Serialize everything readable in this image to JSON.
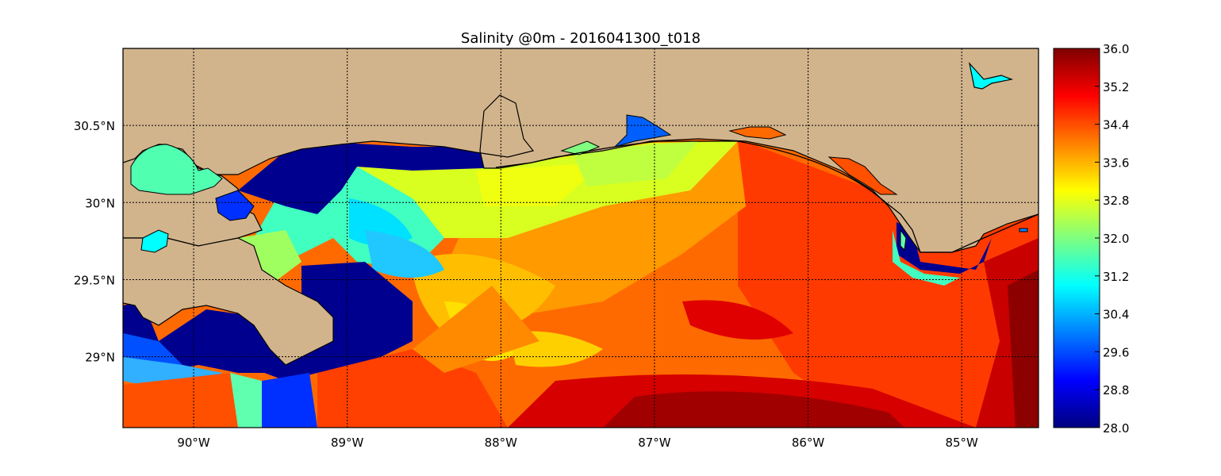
{
  "figure": {
    "title": "Salinity @0m - 2016041300_t018",
    "map": {
      "type": "heatmap",
      "variable": "Salinity",
      "depth": "0m",
      "timestamp": "2016041300_t018",
      "projection": "lon-lat",
      "lon_range": [
        -90.46,
        -84.5
      ],
      "lat_range": [
        28.54,
        31.0
      ],
      "grid": true,
      "land_color": "#d2b48c",
      "coastline_color": "#000000",
      "x_ticks": [
        {
          "value": -90,
          "label": "90°W"
        },
        {
          "value": -89,
          "label": "89°W"
        },
        {
          "value": -88,
          "label": "88°W"
        },
        {
          "value": -87,
          "label": "87°W"
        },
        {
          "value": -86,
          "label": "86°W"
        },
        {
          "value": -85,
          "label": "85°W"
        }
      ],
      "y_ticks": [
        {
          "value": 30.5,
          "label": "30.5°N"
        },
        {
          "value": 30.0,
          "label": "30°N"
        },
        {
          "value": 29.5,
          "label": "29.5°N"
        },
        {
          "value": 29.0,
          "label": "29°N"
        }
      ]
    },
    "colorbar": {
      "colormap": "jet",
      "min": 28.0,
      "max": 36.0,
      "stops": [
        "#00007f",
        "#0000ff",
        "#007fff",
        "#00ffff",
        "#7fff7f",
        "#ffff00",
        "#ff7f00",
        "#ff0000",
        "#7f0000"
      ],
      "ticks": [
        "28.0",
        "28.8",
        "29.6",
        "30.4",
        "31.2",
        "32.0",
        "32.8",
        "33.6",
        "34.4",
        "35.2",
        "36.0"
      ]
    }
  }
}
